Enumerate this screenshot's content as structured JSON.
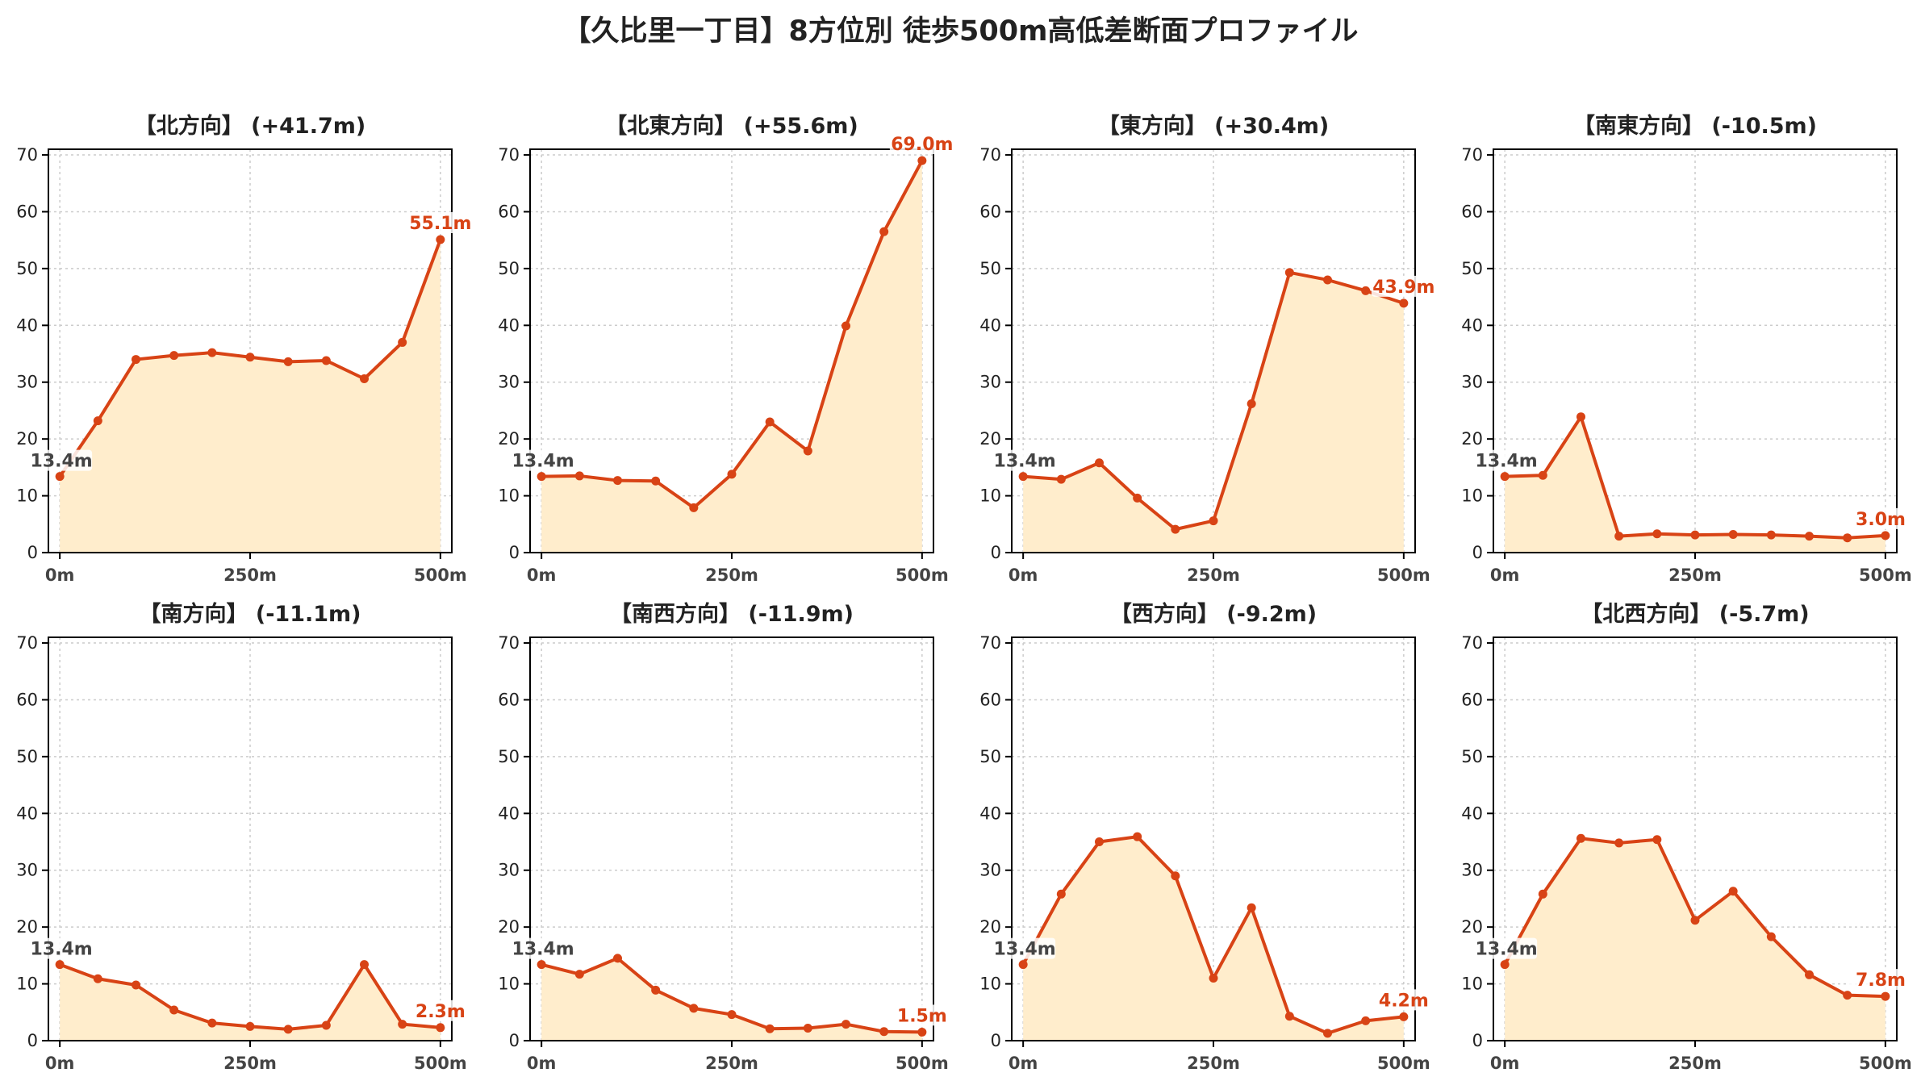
{
  "title": "【久比里一丁目】8方位別 徒歩500m高低差断面プロファイル",
  "colors": {
    "line": "#d84315",
    "fill": "#ffedcc",
    "grid": "#cccccc",
    "axis": "#000000",
    "start_label": "#444444",
    "end_label": "#d84315"
  },
  "chart_data": [
    {
      "type": "area",
      "title": "【北方向】 (+41.7m)",
      "x": [
        0,
        50,
        100,
        150,
        200,
        250,
        300,
        350,
        400,
        450,
        500
      ],
      "values": [
        13.4,
        23.2,
        34.0,
        34.7,
        35.2,
        34.4,
        33.6,
        33.8,
        30.6,
        37.0,
        55.1
      ],
      "start_label": "13.4m",
      "end_label": "55.1m",
      "xticks": [
        "0m",
        "250m",
        "500m"
      ],
      "yticks": [
        "0",
        "10",
        "20",
        "30",
        "40",
        "50",
        "60",
        "70"
      ],
      "xlim": [
        -15,
        515
      ],
      "ylim": [
        0,
        71
      ],
      "grid": true
    },
    {
      "type": "area",
      "title": "【北東方向】 (+55.6m)",
      "x": [
        0,
        50,
        100,
        150,
        200,
        250,
        300,
        350,
        400,
        450,
        500
      ],
      "values": [
        13.4,
        13.5,
        12.7,
        12.6,
        7.9,
        13.8,
        23.0,
        17.9,
        39.9,
        56.5,
        69.0
      ],
      "start_label": "13.4m",
      "end_label": "69.0m",
      "xticks": [
        "0m",
        "250m",
        "500m"
      ],
      "yticks": [
        "0",
        "10",
        "20",
        "30",
        "40",
        "50",
        "60",
        "70"
      ],
      "xlim": [
        -15,
        515
      ],
      "ylim": [
        0,
        71
      ],
      "grid": true
    },
    {
      "type": "area",
      "title": "【東方向】 (+30.4m)",
      "x": [
        0,
        50,
        100,
        150,
        200,
        250,
        300,
        350,
        400,
        450,
        500
      ],
      "values": [
        13.4,
        12.9,
        15.8,
        9.6,
        4.1,
        5.6,
        26.2,
        49.3,
        48.0,
        46.1,
        43.9
      ],
      "start_label": "13.4m",
      "end_label": "43.9m",
      "xticks": [
        "0m",
        "250m",
        "500m"
      ],
      "yticks": [
        "0",
        "10",
        "20",
        "30",
        "40",
        "50",
        "60",
        "70"
      ],
      "xlim": [
        -15,
        515
      ],
      "ylim": [
        0,
        71
      ],
      "grid": true
    },
    {
      "type": "area",
      "title": "【南東方向】 (-10.5m)",
      "x": [
        0,
        50,
        100,
        150,
        200,
        250,
        300,
        350,
        400,
        450,
        500
      ],
      "values": [
        13.4,
        13.6,
        23.9,
        2.9,
        3.3,
        3.1,
        3.2,
        3.1,
        2.9,
        2.6,
        3.0
      ],
      "start_label": "13.4m",
      "end_label": "3.0m",
      "xticks": [
        "0m",
        "250m",
        "500m"
      ],
      "yticks": [
        "0",
        "10",
        "20",
        "30",
        "40",
        "50",
        "60",
        "70"
      ],
      "xlim": [
        -15,
        515
      ],
      "ylim": [
        0,
        71
      ],
      "grid": true
    },
    {
      "type": "area",
      "title": "【南方向】 (-11.1m)",
      "x": [
        0,
        50,
        100,
        150,
        200,
        250,
        300,
        350,
        400,
        450,
        500
      ],
      "values": [
        13.4,
        10.9,
        9.8,
        5.4,
        3.1,
        2.5,
        2.0,
        2.7,
        13.4,
        2.9,
        2.3
      ],
      "start_label": "13.4m",
      "end_label": "2.3m",
      "xticks": [
        "0m",
        "250m",
        "500m"
      ],
      "yticks": [
        "0",
        "10",
        "20",
        "30",
        "40",
        "50",
        "60",
        "70"
      ],
      "xlim": [
        -15,
        515
      ],
      "ylim": [
        0,
        71
      ],
      "grid": true
    },
    {
      "type": "area",
      "title": "【南西方向】 (-11.9m)",
      "x": [
        0,
        50,
        100,
        150,
        200,
        250,
        300,
        350,
        400,
        450,
        500
      ],
      "values": [
        13.4,
        11.7,
        14.5,
        8.9,
        5.7,
        4.6,
        2.1,
        2.2,
        2.9,
        1.6,
        1.5
      ],
      "start_label": "13.4m",
      "end_label": "1.5m",
      "xticks": [
        "0m",
        "250m",
        "500m"
      ],
      "yticks": [
        "0",
        "10",
        "20",
        "30",
        "40",
        "50",
        "60",
        "70"
      ],
      "xlim": [
        -15,
        515
      ],
      "ylim": [
        0,
        71
      ],
      "grid": true
    },
    {
      "type": "area",
      "title": "【西方向】 (-9.2m)",
      "x": [
        0,
        50,
        100,
        150,
        200,
        250,
        300,
        350,
        400,
        450,
        500
      ],
      "values": [
        13.4,
        25.8,
        35.0,
        35.9,
        29.0,
        11.0,
        23.4,
        4.3,
        1.3,
        3.5,
        4.2
      ],
      "start_label": "13.4m",
      "end_label": "4.2m",
      "xticks": [
        "0m",
        "250m",
        "500m"
      ],
      "yticks": [
        "0",
        "10",
        "20",
        "30",
        "40",
        "50",
        "60",
        "70"
      ],
      "xlim": [
        -15,
        515
      ],
      "ylim": [
        0,
        71
      ],
      "grid": true
    },
    {
      "type": "area",
      "title": "【北西方向】 (-5.7m)",
      "x": [
        0,
        50,
        100,
        150,
        200,
        250,
        300,
        350,
        400,
        450,
        500
      ],
      "values": [
        13.4,
        25.8,
        35.6,
        34.8,
        35.4,
        21.2,
        26.3,
        18.3,
        11.6,
        8.0,
        7.8
      ],
      "start_label": "13.4m",
      "end_label": "7.8m",
      "xticks": [
        "0m",
        "250m",
        "500m"
      ],
      "yticks": [
        "0",
        "10",
        "20",
        "30",
        "40",
        "50",
        "60",
        "70"
      ],
      "xlim": [
        -15,
        515
      ],
      "ylim": [
        0,
        71
      ],
      "grid": true
    }
  ]
}
